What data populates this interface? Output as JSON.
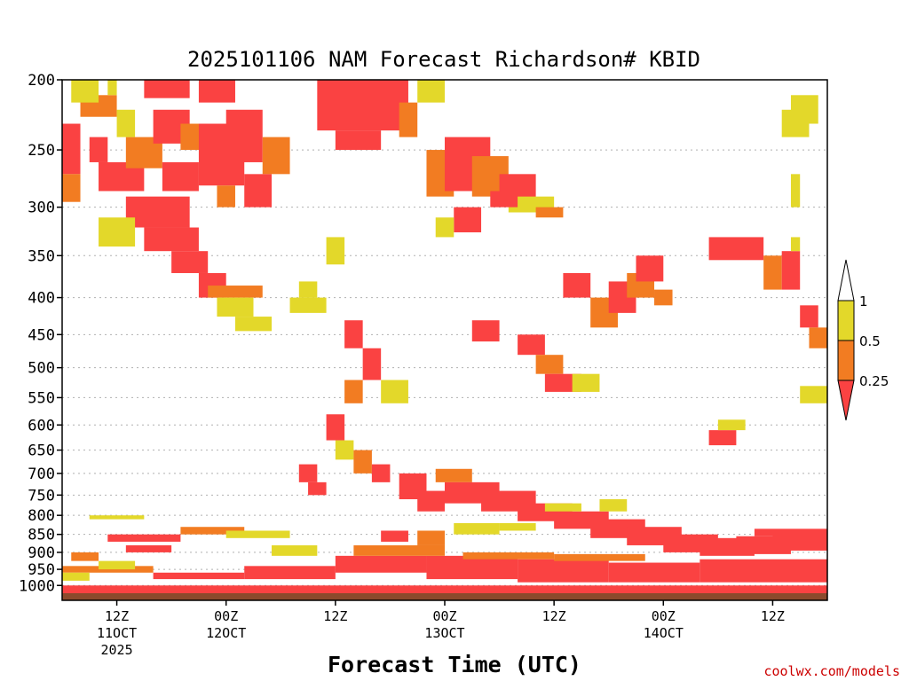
{
  "chart_data": {
    "type": "heatmap",
    "title": "2025101106 NAM Forecast Richardson# KBID",
    "xlabel": "Forecast Time (UTC)",
    "ylabel": "Pressure (hPa)",
    "credit": "coolwx.com/models",
    "y_ticks": [
      200,
      250,
      300,
      350,
      400,
      450,
      500,
      550,
      600,
      650,
      700,
      750,
      800,
      850,
      900,
      950,
      1000
    ],
    "y_tick_labels": [
      "200",
      "250",
      "300",
      "350",
      "400",
      "450",
      "500",
      "550",
      "600",
      "650",
      "700",
      "750",
      "800",
      "850",
      "900",
      "950",
      "1000"
    ],
    "ylim": [
      200,
      1025
    ],
    "xlim_hours": [
      0,
      84
    ],
    "x_ticks": [
      {
        "hour": 6,
        "label": "12Z",
        "sub1": "11OCT",
        "sub2": "2025"
      },
      {
        "hour": 18,
        "label": "00Z",
        "sub1": "12OCT",
        "sub2": ""
      },
      {
        "hour": 30,
        "label": "12Z",
        "sub1": "",
        "sub2": ""
      },
      {
        "hour": 42,
        "label": "00Z",
        "sub1": "13OCT",
        "sub2": ""
      },
      {
        "hour": 54,
        "label": "12Z",
        "sub1": "",
        "sub2": ""
      },
      {
        "hour": 66,
        "label": "00Z",
        "sub1": "14OCT",
        "sub2": ""
      },
      {
        "hour": 78,
        "label": "12Z",
        "sub1": "",
        "sub2": ""
      }
    ],
    "legend": {
      "position": "right",
      "levels": [
        {
          "label": "1",
          "color": "#ffffff"
        },
        {
          "label": "0.5",
          "color": "#e3d82a"
        },
        {
          "label": "0.25",
          "color": "#f27c22"
        },
        {
          "label": "",
          "color": "#fa4242"
        }
      ]
    },
    "colors": {
      "red": "#fa4242",
      "orange": "#f27c22",
      "yellow": "#e3d82a",
      "ground": "#8b4a2c",
      "grid": "#b0b0b0"
    },
    "class_codes": {
      "1": "Ri < 0.25",
      "2": "0.25 <= Ri < 0.5",
      "3": "0.5 <= Ri < 1"
    },
    "regions": [
      [
        0,
        2,
        230,
        270,
        1
      ],
      [
        0,
        2,
        270,
        295,
        2
      ],
      [
        2,
        6,
        210,
        225,
        2
      ],
      [
        3,
        5,
        240,
        260,
        1
      ],
      [
        1,
        4,
        200,
        215,
        3
      ],
      [
        5,
        6,
        200,
        210,
        3
      ],
      [
        4,
        9,
        260,
        285,
        1
      ],
      [
        7,
        11,
        240,
        265,
        2
      ],
      [
        9,
        14,
        200,
        212,
        1
      ],
      [
        6,
        8,
        220,
        240,
        3
      ],
      [
        10,
        14,
        220,
        245,
        1
      ],
      [
        11,
        15,
        260,
        285,
        1
      ],
      [
        13,
        16,
        230,
        250,
        2
      ],
      [
        15,
        19,
        200,
        215,
        1
      ],
      [
        15,
        20,
        230,
        280,
        1
      ],
      [
        18,
        22,
        220,
        260,
        1
      ],
      [
        17,
        19,
        280,
        300,
        2
      ],
      [
        20,
        23,
        270,
        300,
        1
      ],
      [
        22,
        25,
        240,
        270,
        2
      ],
      [
        7,
        14,
        290,
        320,
        1
      ],
      [
        9,
        15,
        320,
        345,
        1
      ],
      [
        4,
        8,
        310,
        340,
        3
      ],
      [
        12,
        16,
        345,
        370,
        1
      ],
      [
        15,
        18,
        370,
        400,
        1
      ],
      [
        16,
        22,
        385,
        400,
        2
      ],
      [
        17,
        21,
        400,
        425,
        3
      ],
      [
        19,
        23,
        425,
        445,
        3
      ],
      [
        26,
        28,
        380,
        400,
        3
      ],
      [
        25,
        29,
        400,
        420,
        3
      ],
      [
        29,
        31,
        330,
        360,
        3
      ],
      [
        28,
        38,
        200,
        235,
        1
      ],
      [
        30,
        35,
        235,
        250,
        1
      ],
      [
        37,
        39,
        215,
        240,
        2
      ],
      [
        39,
        42,
        200,
        215,
        3
      ],
      [
        40,
        43,
        250,
        290,
        2
      ],
      [
        42,
        47,
        240,
        285,
        1
      ],
      [
        45,
        49,
        255,
        290,
        2
      ],
      [
        48,
        52,
        270,
        295,
        1
      ],
      [
        49,
        54,
        290,
        305,
        3
      ],
      [
        52,
        55,
        300,
        310,
        2
      ],
      [
        47,
        50,
        285,
        300,
        1
      ],
      [
        43,
        46,
        300,
        325,
        1
      ],
      [
        41,
        43,
        310,
        330,
        3
      ],
      [
        31,
        33,
        430,
        470,
        1
      ],
      [
        33,
        35,
        470,
        520,
        1
      ],
      [
        35,
        38,
        520,
        560,
        3
      ],
      [
        31,
        33,
        520,
        560,
        2
      ],
      [
        29,
        31,
        580,
        630,
        1
      ],
      [
        30,
        32,
        630,
        670,
        3
      ],
      [
        32,
        34,
        650,
        700,
        2
      ],
      [
        34,
        36,
        680,
        720,
        1
      ],
      [
        26,
        28,
        680,
        720,
        1
      ],
      [
        27,
        29,
        720,
        750,
        1
      ],
      [
        37,
        40,
        700,
        760,
        1
      ],
      [
        39,
        42,
        740,
        790,
        1
      ],
      [
        41,
        45,
        690,
        720,
        2
      ],
      [
        42,
        48,
        720,
        770,
        1
      ],
      [
        46,
        52,
        740,
        790,
        1
      ],
      [
        50,
        56,
        770,
        815,
        1
      ],
      [
        54,
        60,
        790,
        835,
        1
      ],
      [
        58,
        64,
        810,
        860,
        1
      ],
      [
        62,
        68,
        830,
        880,
        1
      ],
      [
        66,
        72,
        850,
        900,
        1
      ],
      [
        70,
        76,
        860,
        910,
        1
      ],
      [
        74,
        80,
        855,
        905,
        1
      ],
      [
        78,
        84,
        850,
        895,
        1
      ],
      [
        53,
        57,
        770,
        790,
        3
      ],
      [
        59,
        62,
        760,
        790,
        3
      ],
      [
        45,
        48,
        430,
        460,
        1
      ],
      [
        50,
        53,
        450,
        480,
        1
      ],
      [
        52,
        55,
        480,
        510,
        2
      ],
      [
        53,
        57,
        510,
        540,
        1
      ],
      [
        56,
        59,
        510,
        540,
        3
      ],
      [
        55,
        58,
        370,
        400,
        1
      ],
      [
        58,
        61,
        400,
        440,
        2
      ],
      [
        60,
        63,
        380,
        420,
        1
      ],
      [
        62,
        65,
        370,
        400,
        2
      ],
      [
        63,
        66,
        350,
        380,
        1
      ],
      [
        65,
        67,
        390,
        410,
        2
      ],
      [
        71,
        77,
        330,
        355,
        1
      ],
      [
        77,
        79,
        350,
        390,
        2
      ],
      [
        79,
        81,
        345,
        390,
        1
      ],
      [
        80,
        81,
        330,
        345,
        3
      ],
      [
        81,
        83,
        410,
        440,
        1
      ],
      [
        82,
        84,
        440,
        470,
        2
      ],
      [
        71,
        74,
        610,
        640,
        1
      ],
      [
        72,
        75,
        590,
        610,
        3
      ],
      [
        80,
        81,
        270,
        300,
        3
      ],
      [
        79,
        82,
        220,
        240,
        3
      ],
      [
        80,
        83,
        210,
        230,
        3
      ],
      [
        81,
        84,
        530,
        560,
        3
      ],
      [
        5,
        13,
        850,
        870,
        1
      ],
      [
        7,
        12,
        880,
        900,
        1
      ],
      [
        3,
        9,
        800,
        810,
        3
      ],
      [
        13,
        20,
        830,
        850,
        2
      ],
      [
        18,
        25,
        840,
        860,
        3
      ],
      [
        23,
        28,
        880,
        910,
        3
      ],
      [
        35,
        38,
        840,
        870,
        1
      ],
      [
        39,
        42,
        840,
        880,
        2
      ],
      [
        43,
        48,
        820,
        850,
        3
      ],
      [
        48,
        52,
        820,
        840,
        3
      ],
      [
        76,
        84,
        835,
        855,
        1
      ],
      [
        0,
        84,
        1000,
        1025,
        1
      ],
      [
        0,
        10,
        940,
        960,
        2
      ],
      [
        10,
        20,
        960,
        980,
        1
      ],
      [
        20,
        30,
        940,
        980,
        1
      ],
      [
        30,
        40,
        910,
        960,
        1
      ],
      [
        40,
        50,
        910,
        980,
        1
      ],
      [
        50,
        60,
        920,
        990,
        1
      ],
      [
        60,
        70,
        930,
        990,
        1
      ],
      [
        70,
        84,
        920,
        990,
        1
      ],
      [
        32,
        42,
        880,
        910,
        2
      ],
      [
        44,
        54,
        900,
        920,
        2
      ],
      [
        54,
        64,
        905,
        925,
        2
      ],
      [
        1,
        4,
        900,
        925,
        2
      ],
      [
        4,
        8,
        925,
        950,
        3
      ],
      [
        0,
        3,
        960,
        985,
        3
      ]
    ]
  }
}
